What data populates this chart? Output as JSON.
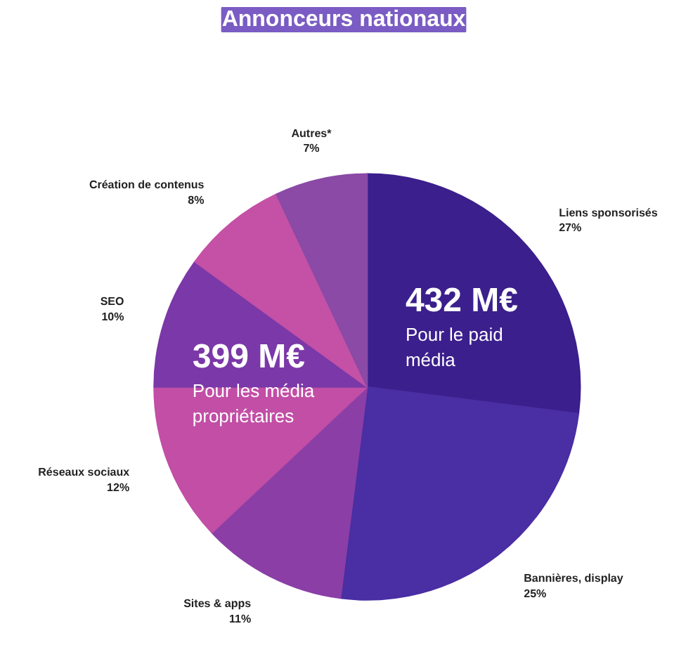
{
  "chart_data": {
    "type": "pie",
    "title": "Annonceurs nationaux",
    "categories": [
      "Liens sponsorisés",
      "Bannières, display",
      "Sites & apps",
      "Réseaux sociaux",
      "SEO",
      "Création de contenus",
      "Autres*"
    ],
    "values": [
      27,
      25,
      11,
      12,
      10,
      8,
      7
    ],
    "value_labels": [
      "27%",
      "25%",
      "11%",
      "12%",
      "10%",
      "8%",
      "7%"
    ],
    "colors": [
      "#3b1f8c",
      "#4a2ea3",
      "#8b3fa6",
      "#c24ea6",
      "#7b38a8",
      "#c451a6",
      "#8a4aa6"
    ],
    "annotations": [
      "432 M€\nPour le paid\nmédia",
      "399 M€\nPour les média\npropriétaires"
    ]
  }
}
